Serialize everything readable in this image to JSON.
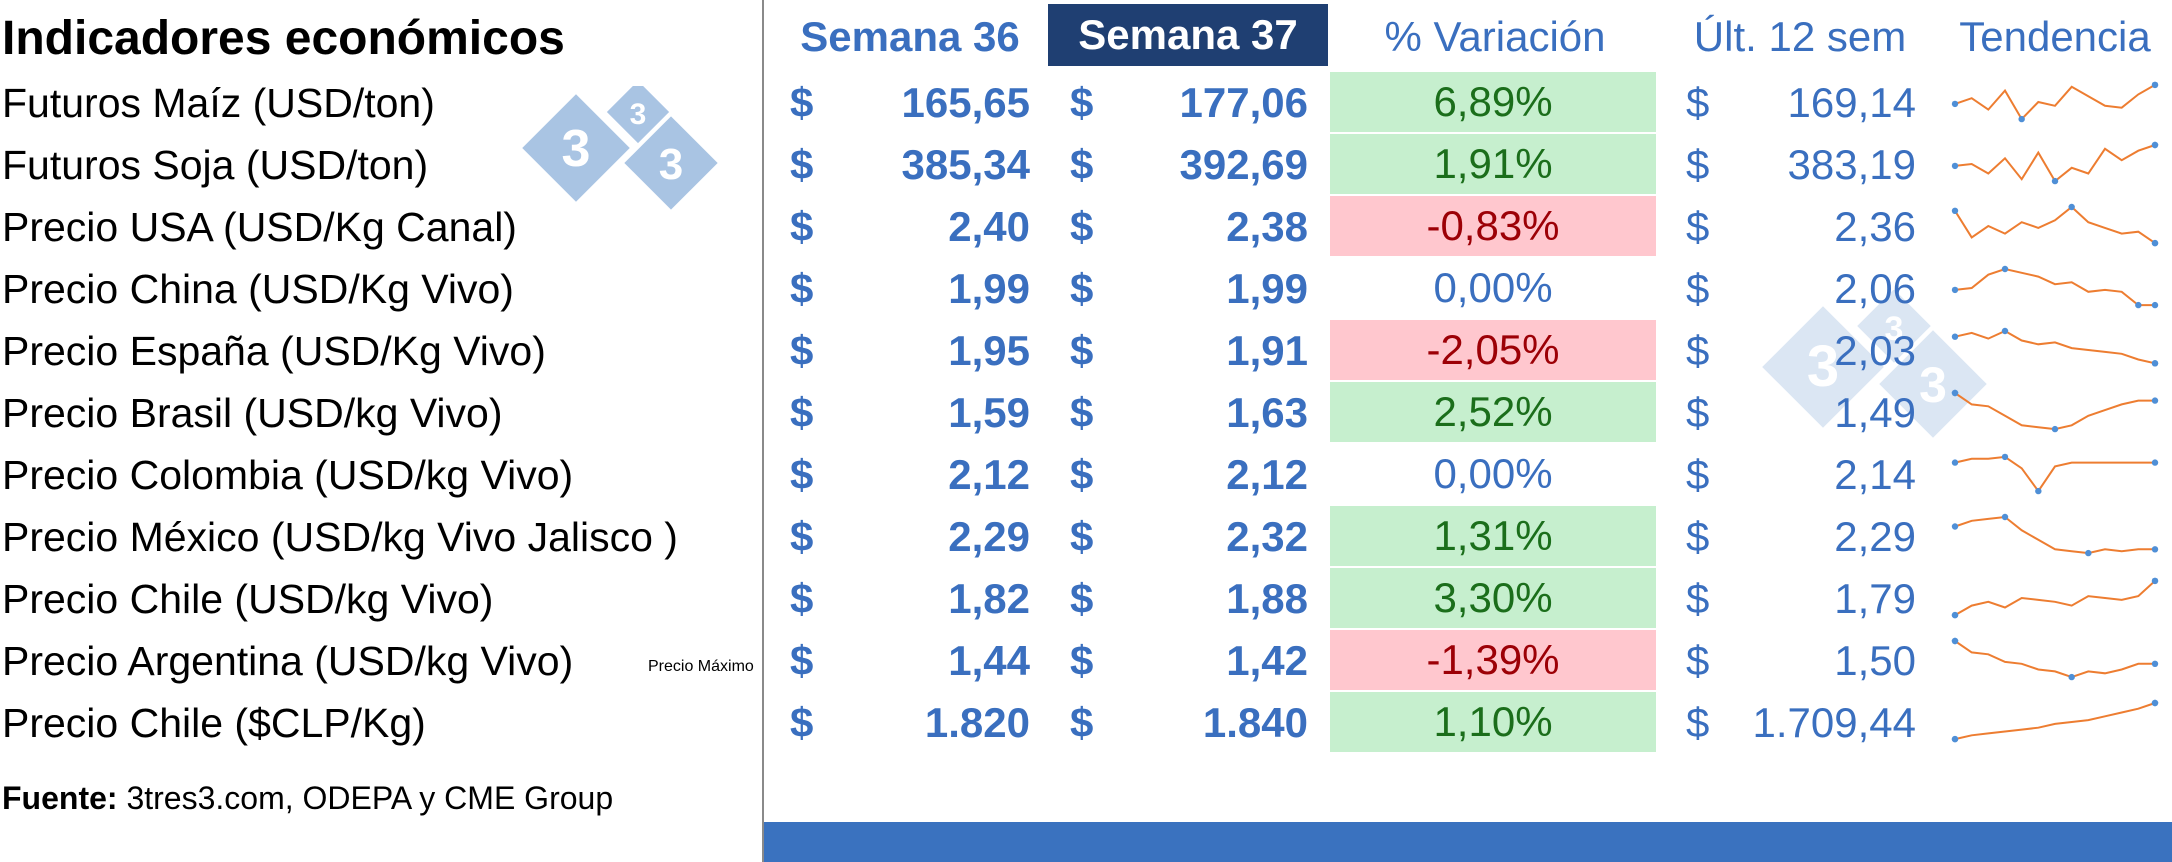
{
  "title": "Indicadores económicos",
  "headers": {
    "week36": "Semana 36",
    "week37": "Semana 37",
    "variation": "% Variación",
    "last12": "Últ. 12 sem",
    "trend": "Tendencia"
  },
  "currency_symbol": "$",
  "note": "Precio Máximo",
  "source": {
    "label": "Fuente:",
    "text": " 3tres3.com, ODEPA y CME Group"
  },
  "watermark": {
    "digit": "3"
  },
  "colors": {
    "accent": "#3a6fbf",
    "header_active_bg": "#1f3f72",
    "positive_bg": "#c6efce",
    "positive_text": "#1b6e1b",
    "negative_bg": "#ffc7ce",
    "negative_text": "#9c0006",
    "sparkline": "#ed7d31",
    "sparkline_marker": "#4f8fd6",
    "footer_bar": "#3a72bf"
  },
  "rows": [
    {
      "label": "Futuros Maíz (USD/ton)",
      "week36": "165,65",
      "week37": "177,06",
      "variation": "6,89%",
      "sign": "pos",
      "last12": "169,14",
      "trend": [
        0.55,
        0.4,
        0.7,
        0.2,
        0.95,
        0.5,
        0.6,
        0.1,
        0.35,
        0.6,
        0.65,
        0.3,
        0.05
      ]
    },
    {
      "label": "Futuros Soja (USD/ton)",
      "week36": "385,34",
      "week37": "392,69",
      "variation": "1,91%",
      "sign": "pos",
      "last12": "383,19",
      "trend": [
        0.55,
        0.5,
        0.75,
        0.35,
        0.9,
        0.2,
        0.95,
        0.6,
        0.75,
        0.1,
        0.4,
        0.15,
        0.0
      ]
    },
    {
      "label": "Precio USA (USD/Kg Canal)",
      "week36": "2,40",
      "week37": "2,38",
      "variation": "-0,83%",
      "sign": "neg",
      "last12": "2,36",
      "trend": [
        0.1,
        0.8,
        0.5,
        0.7,
        0.4,
        0.55,
        0.35,
        0.0,
        0.4,
        0.55,
        0.7,
        0.65,
        0.95
      ]
    },
    {
      "label": "Precio China (USD/Kg Vivo)",
      "week36": "1,99",
      "week37": "1,99",
      "variation": "0,00%",
      "sign": "zero",
      "last12": "2,06",
      "trend": [
        0.55,
        0.5,
        0.15,
        0.0,
        0.1,
        0.2,
        0.4,
        0.35,
        0.6,
        0.55,
        0.6,
        0.95,
        0.95
      ]
    },
    {
      "label": "Precio España (USD/Kg Vivo)",
      "week36": "1,95",
      "week37": "1,91",
      "variation": "-2,05%",
      "sign": "neg",
      "last12": "2,03",
      "trend": [
        0.15,
        0.05,
        0.2,
        0.0,
        0.25,
        0.35,
        0.3,
        0.45,
        0.5,
        0.55,
        0.6,
        0.75,
        0.85
      ]
    },
    {
      "label": "Precio  Brasil (USD/kg Vivo)",
      "week36": "1,59",
      "week37": "1,63",
      "variation": "2,52%",
      "sign": "pos",
      "last12": "1,49",
      "trend": [
        0.0,
        0.3,
        0.35,
        0.6,
        0.85,
        0.9,
        0.95,
        0.85,
        0.6,
        0.45,
        0.3,
        0.2,
        0.2
      ]
    },
    {
      "label": "Precio Colombia (USD/kg Vivo)",
      "week36": "2,12",
      "week37": "2,12",
      "variation": "0,00%",
      "sign": "zero",
      "last12": "2,14",
      "trend": [
        0.2,
        0.1,
        0.1,
        0.05,
        0.35,
        0.95,
        0.3,
        0.2,
        0.2,
        0.2,
        0.2,
        0.2,
        0.2
      ]
    },
    {
      "label": "Precio México (USD/kg Vivo Jalisco )",
      "week36": "2,29",
      "week37": "2,32",
      "variation": "1,31%",
      "sign": "pos",
      "last12": "2,29",
      "trend": [
        0.25,
        0.1,
        0.05,
        0.0,
        0.35,
        0.6,
        0.85,
        0.9,
        0.95,
        0.85,
        0.9,
        0.85,
        0.85
      ]
    },
    {
      "label": "Precio Chile (USD/kg Vivo)",
      "week36": "1,82",
      "week37": "1,88",
      "variation": "3,30%",
      "sign": "pos",
      "last12": "1,79",
      "trend": [
        0.95,
        0.7,
        0.6,
        0.75,
        0.5,
        0.55,
        0.6,
        0.7,
        0.45,
        0.5,
        0.55,
        0.45,
        0.05
      ]
    },
    {
      "label": "Precio Argentina (USD/kg Vivo)",
      "week36": "1,44",
      "week37": "1,42",
      "variation": "-1,39%",
      "sign": "neg",
      "last12": "1,50",
      "trend": [
        0.0,
        0.3,
        0.35,
        0.55,
        0.6,
        0.75,
        0.8,
        0.95,
        0.8,
        0.85,
        0.75,
        0.6,
        0.6
      ]
    },
    {
      "label": "Precio Chile ($CLP/Kg)",
      "week36": "1.820",
      "week37": "1.840",
      "variation": "1,10%",
      "sign": "pos",
      "last12": "1.709,44",
      "trend": [
        0.95,
        0.85,
        0.8,
        0.75,
        0.7,
        0.65,
        0.55,
        0.5,
        0.45,
        0.35,
        0.25,
        0.15,
        0.0
      ]
    }
  ]
}
